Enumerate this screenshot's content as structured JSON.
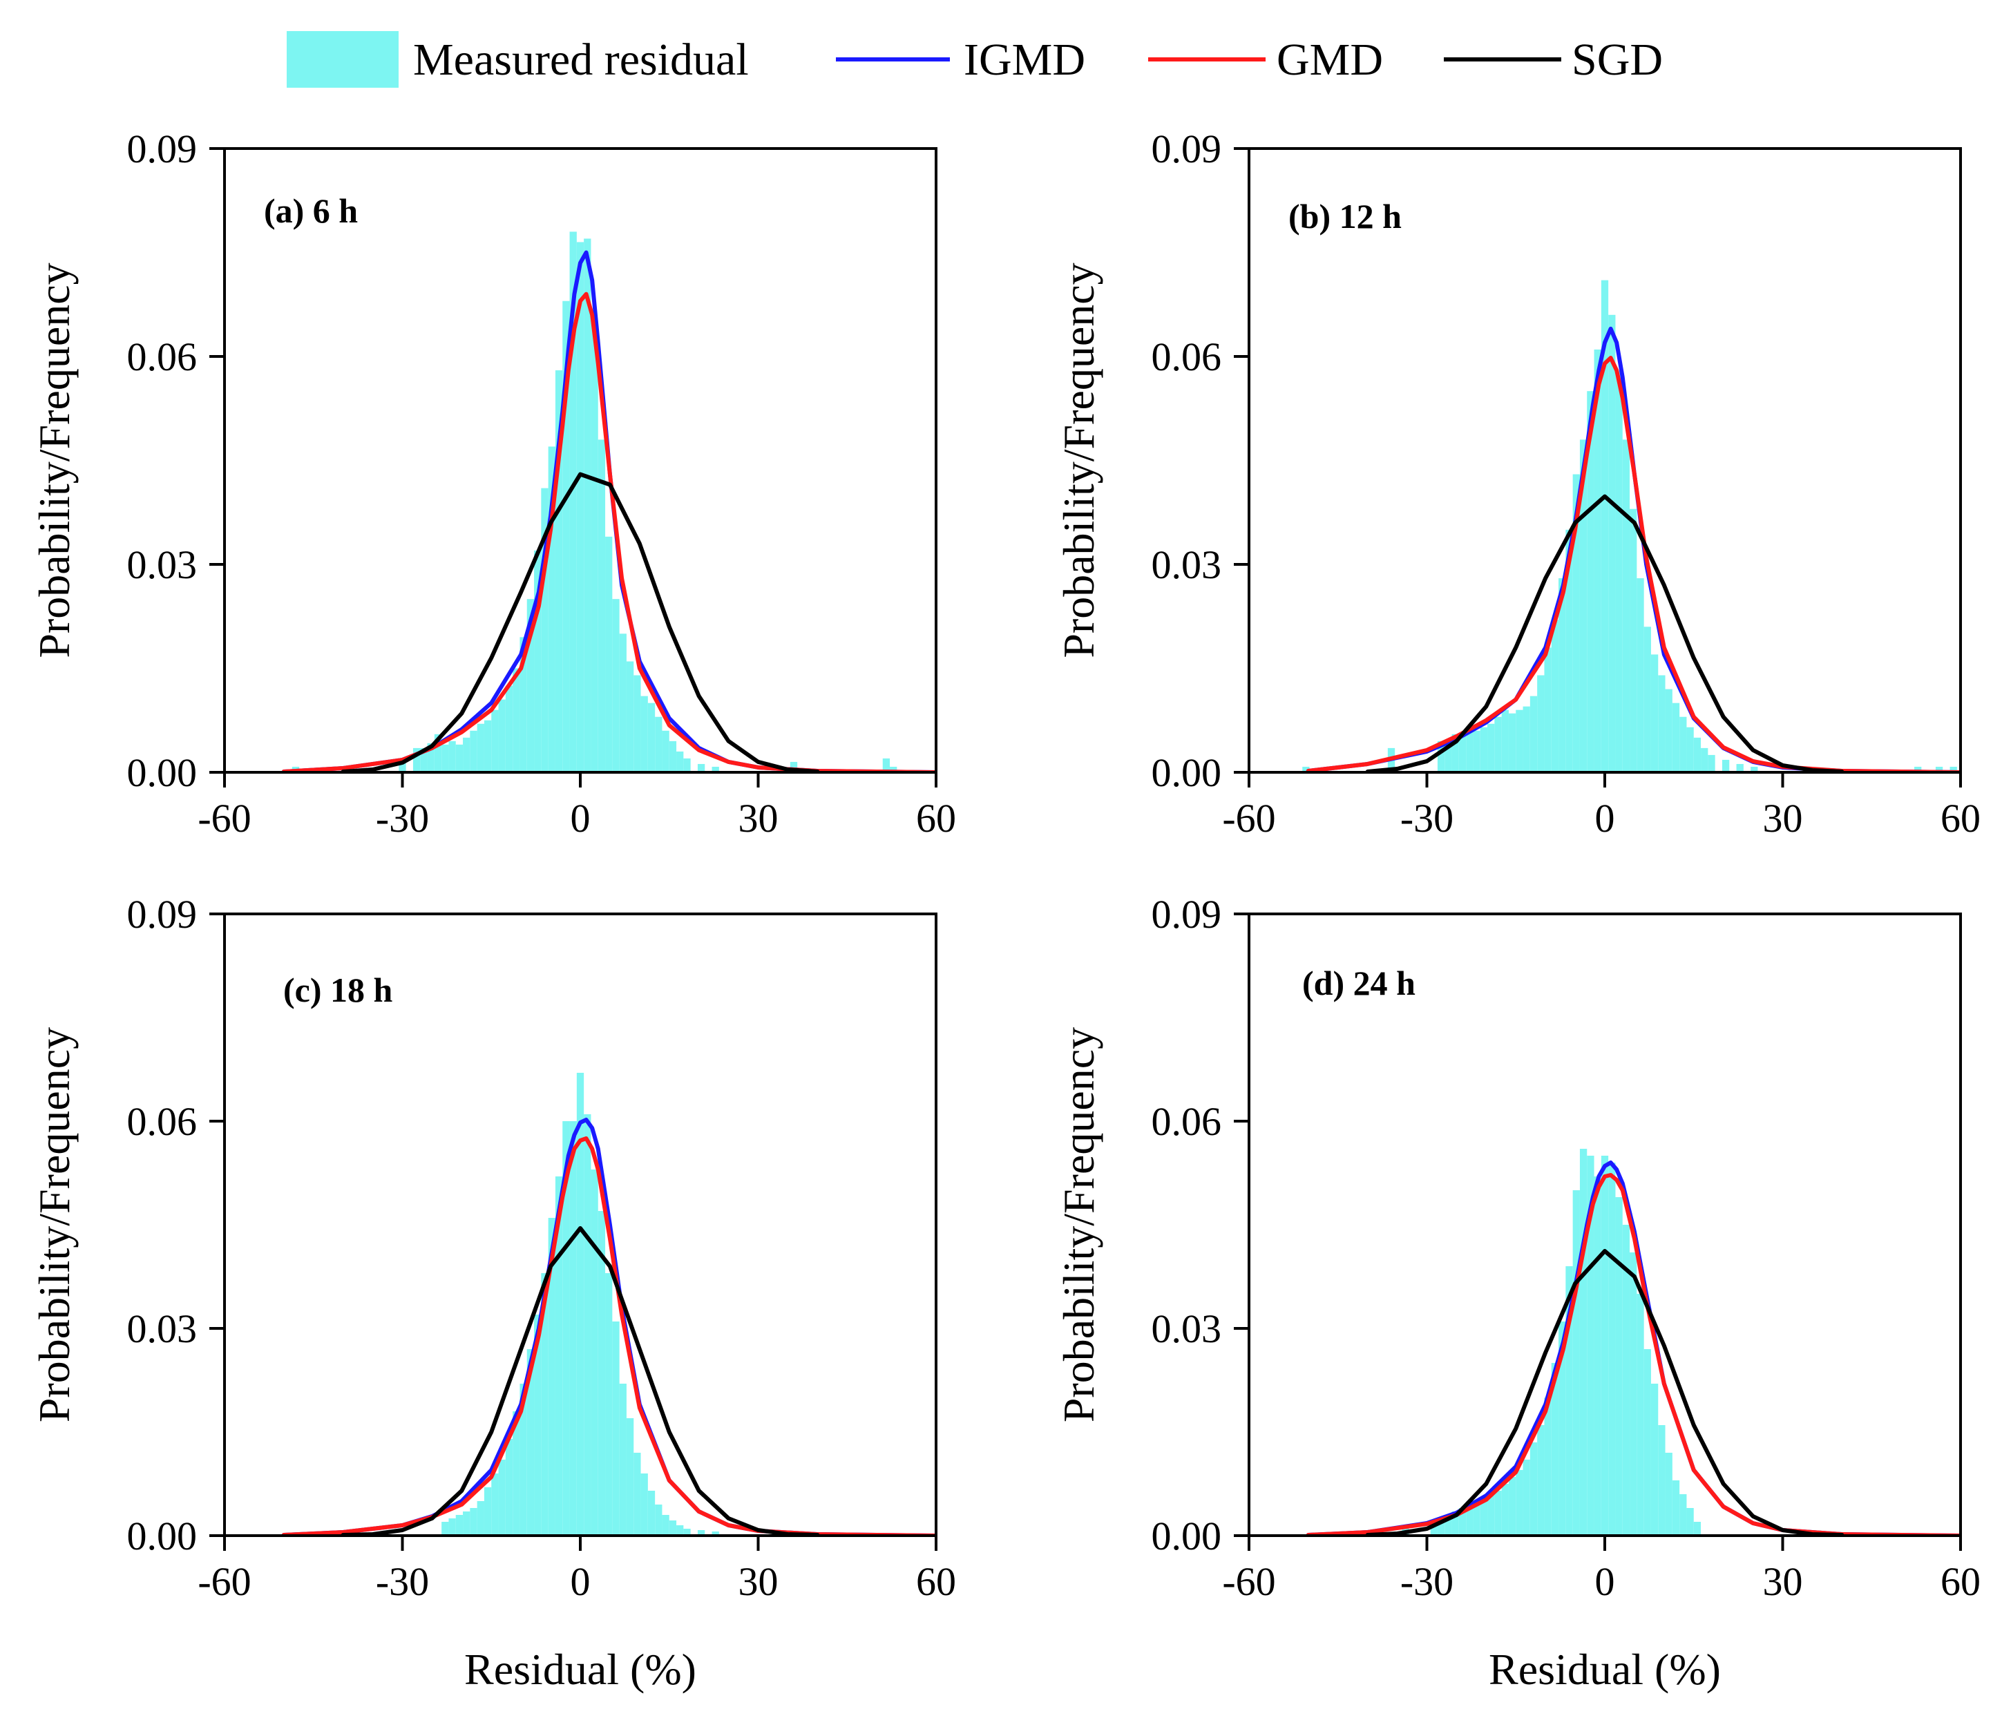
{
  "legend": [
    {
      "name": "Measured residual",
      "kind": "bar",
      "color": "#7df5f2"
    },
    {
      "name": "IGMD",
      "kind": "line",
      "color": "#1a1aff"
    },
    {
      "name": "GMD",
      "kind": "line",
      "color": "#ff1a1a"
    },
    {
      "name": "SGD",
      "kind": "line",
      "color": "#000000"
    }
  ],
  "chart_data": [
    {
      "type": "bar",
      "panel_label": "(a) 6 h",
      "xlabel": "",
      "ylabel": "Probability/Frequency",
      "xlim": [
        -60,
        60
      ],
      "ylim": [
        0,
        0.09
      ],
      "xticks": [
        "-60",
        "-30",
        "0",
        "30",
        "60"
      ],
      "yticks": [
        "0.00",
        "0.03",
        "0.06",
        "0.09"
      ],
      "histogram": {
        "name": "Measured residual",
        "bin_width": 1.2,
        "x": [
          -48,
          -30,
          -27.6,
          -26.4,
          -25.2,
          -24,
          -22.8,
          -21.6,
          -20.4,
          -19.2,
          -18,
          -16.8,
          -15.6,
          -14.4,
          -13.2,
          -12,
          -10.8,
          -9.6,
          -8.4,
          -7.2,
          -6,
          -4.8,
          -3.6,
          -2.4,
          -1.2,
          0,
          1.2,
          2.4,
          3.6,
          4.8,
          6,
          7.2,
          8.4,
          9.6,
          10.8,
          12,
          13.2,
          14.4,
          15.6,
          16.8,
          18,
          20.4,
          22.8,
          36,
          51.6,
          52.8
        ],
        "values": [
          0.0008,
          0.002,
          0.0035,
          0.0035,
          0.0042,
          0.0055,
          0.004,
          0.0045,
          0.004,
          0.005,
          0.006,
          0.007,
          0.0075,
          0.009,
          0.0105,
          0.0125,
          0.015,
          0.0195,
          0.025,
          0.032,
          0.041,
          0.047,
          0.058,
          0.068,
          0.078,
          0.0765,
          0.077,
          0.065,
          0.048,
          0.034,
          0.025,
          0.02,
          0.016,
          0.014,
          0.011,
          0.01,
          0.008,
          0.006,
          0.0045,
          0.003,
          0.002,
          0.0012,
          0.0008,
          0.0015,
          0.002,
          0.0008
        ]
      },
      "series": [
        {
          "name": "IGMD",
          "x": [
            -50,
            -40,
            -30,
            -25,
            -20,
            -15,
            -10,
            -7,
            -5,
            -3,
            -2,
            -1,
            0,
            1,
            2,
            3,
            5,
            7,
            10,
            15,
            20,
            25,
            30,
            40,
            50,
            60
          ],
          "values": [
            0.0001,
            0.0006,
            0.0018,
            0.0035,
            0.0062,
            0.01,
            0.017,
            0.026,
            0.037,
            0.052,
            0.061,
            0.069,
            0.0735,
            0.075,
            0.071,
            0.062,
            0.043,
            0.027,
            0.016,
            0.0078,
            0.0035,
            0.0015,
            0.0007,
            0.0002,
            0.0001,
            0
          ]
        },
        {
          "name": "GMD",
          "x": [
            -50,
            -40,
            -30,
            -25,
            -20,
            -15,
            -10,
            -7,
            -5,
            -3,
            -2,
            -1,
            0,
            1,
            2,
            3,
            5,
            7,
            10,
            15,
            20,
            25,
            30,
            40,
            50,
            60
          ],
          "values": [
            0.0001,
            0.0006,
            0.0018,
            0.0035,
            0.0058,
            0.009,
            0.015,
            0.024,
            0.035,
            0.05,
            0.058,
            0.064,
            0.068,
            0.069,
            0.066,
            0.059,
            0.043,
            0.028,
            0.015,
            0.0068,
            0.0032,
            0.0015,
            0.0007,
            0.0002,
            0.0001,
            0
          ]
        },
        {
          "name": "SGD",
          "x": [
            -40,
            -35,
            -30,
            -25,
            -20,
            -15,
            -10,
            -5,
            0,
            5,
            10,
            15,
            20,
            25,
            30,
            35,
            40
          ],
          "values": [
            0.0001,
            0.0004,
            0.0014,
            0.0038,
            0.0085,
            0.0165,
            0.026,
            0.036,
            0.043,
            0.0415,
            0.033,
            0.021,
            0.011,
            0.0045,
            0.0015,
            0.0004,
            0.0001
          ]
        }
      ]
    },
    {
      "type": "bar",
      "panel_label": "(b) 12 h",
      "xlabel": "",
      "ylabel": "Probability/Frequency",
      "xlim": [
        -60,
        60
      ],
      "ylim": [
        0,
        0.09
      ],
      "xticks": [
        "-60",
        "-30",
        "0",
        "30",
        "60"
      ],
      "yticks": [
        "0.00",
        "0.03",
        "0.06",
        "0.09"
      ],
      "histogram": {
        "name": "Measured residual",
        "bin_width": 1.2,
        "x": [
          -50.4,
          -36,
          -27.6,
          -26.4,
          -25.2,
          -24,
          -22.8,
          -21.6,
          -20.4,
          -19.2,
          -18,
          -16.8,
          -15.6,
          -14.4,
          -13.2,
          -12,
          -10.8,
          -9.6,
          -8.4,
          -7.2,
          -6,
          -4.8,
          -3.6,
          -2.4,
          -1.2,
          0,
          1.2,
          2.4,
          3.6,
          4.8,
          6,
          7.2,
          8.4,
          9.6,
          10.8,
          12,
          13.2,
          14.4,
          15.6,
          16.8,
          18,
          20.4,
          22.8,
          25.2,
          52.8,
          56.4,
          58.8
        ],
        "values": [
          0.0008,
          0.0035,
          0.0045,
          0.0045,
          0.0055,
          0.0055,
          0.006,
          0.006,
          0.0065,
          0.007,
          0.008,
          0.009,
          0.0085,
          0.009,
          0.0095,
          0.011,
          0.014,
          0.018,
          0.022,
          0.028,
          0.035,
          0.043,
          0.048,
          0.055,
          0.061,
          0.071,
          0.066,
          0.058,
          0.048,
          0.038,
          0.028,
          0.021,
          0.017,
          0.014,
          0.012,
          0.01,
          0.008,
          0.0065,
          0.005,
          0.0035,
          0.0025,
          0.0018,
          0.0012,
          0.0008,
          0.0008,
          0.0008,
          0.0008
        ]
      },
      "series": [
        {
          "name": "IGMD",
          "x": [
            -50,
            -40,
            -30,
            -25,
            -20,
            -15,
            -10,
            -7,
            -5,
            -3,
            -2,
            -1,
            0,
            1,
            2,
            3,
            5,
            7,
            10,
            15,
            20,
            25,
            30,
            40,
            50,
            60
          ],
          "values": [
            0.0002,
            0.0012,
            0.003,
            0.0048,
            0.0072,
            0.0105,
            0.018,
            0.027,
            0.036,
            0.047,
            0.053,
            0.058,
            0.062,
            0.064,
            0.062,
            0.057,
            0.043,
            0.03,
            0.017,
            0.0078,
            0.0035,
            0.0015,
            0.0007,
            0.0002,
            0.0001,
            0
          ]
        },
        {
          "name": "GMD",
          "x": [
            -50,
            -40,
            -30,
            -25,
            -20,
            -15,
            -10,
            -7,
            -5,
            -3,
            -2,
            -1,
            0,
            1,
            2,
            3,
            5,
            7,
            10,
            15,
            20,
            25,
            30,
            40,
            50,
            60
          ],
          "values": [
            0.0002,
            0.0012,
            0.0032,
            0.0052,
            0.0075,
            0.0105,
            0.017,
            0.026,
            0.035,
            0.046,
            0.051,
            0.056,
            0.059,
            0.0598,
            0.058,
            0.054,
            0.043,
            0.031,
            0.018,
            0.008,
            0.0036,
            0.0016,
            0.0008,
            0.0002,
            0.0001,
            0
          ]
        },
        {
          "name": "SGD",
          "x": [
            -40,
            -35,
            -30,
            -25,
            -20,
            -15,
            -10,
            -5,
            0,
            5,
            10,
            15,
            20,
            25,
            30,
            35,
            40
          ],
          "values": [
            0.0001,
            0.0005,
            0.0016,
            0.0045,
            0.0095,
            0.018,
            0.028,
            0.036,
            0.0398,
            0.036,
            0.027,
            0.0165,
            0.008,
            0.0032,
            0.001,
            0.0003,
            0.0001
          ]
        }
      ]
    },
    {
      "type": "bar",
      "panel_label": "(c) 18 h",
      "xlabel": "Residual (%)",
      "ylabel": "Probability/Frequency",
      "xlim": [
        -60,
        60
      ],
      "ylim": [
        0,
        0.09
      ],
      "xticks": [
        "-60",
        "-30",
        "0",
        "30",
        "60"
      ],
      "yticks": [
        "0.00",
        "0.03",
        "0.06",
        "0.09"
      ],
      "histogram": {
        "name": "Measured residual",
        "bin_width": 1.2,
        "x": [
          -22.8,
          -21.6,
          -20.4,
          -19.2,
          -18,
          -16.8,
          -15.6,
          -14.4,
          -13.2,
          -12,
          -10.8,
          -9.6,
          -8.4,
          -7.2,
          -6,
          -4.8,
          -3.6,
          -2.4,
          -1.2,
          0,
          1.2,
          2.4,
          3.6,
          4.8,
          6,
          7.2,
          8.4,
          9.6,
          10.8,
          12,
          13.2,
          14.4,
          15.6,
          16.8,
          18,
          20.4,
          22.8
        ],
        "values": [
          0.002,
          0.0025,
          0.003,
          0.0035,
          0.004,
          0.005,
          0.007,
          0.009,
          0.011,
          0.014,
          0.018,
          0.022,
          0.027,
          0.032,
          0.038,
          0.046,
          0.052,
          0.06,
          0.06,
          0.067,
          0.061,
          0.053,
          0.047,
          0.038,
          0.031,
          0.022,
          0.017,
          0.012,
          0.009,
          0.0065,
          0.0045,
          0.003,
          0.0022,
          0.0015,
          0.001,
          0.0008,
          0.0006
        ]
      },
      "series": [
        {
          "name": "IGMD",
          "x": [
            -50,
            -40,
            -30,
            -25,
            -20,
            -15,
            -10,
            -7,
            -5,
            -3,
            -2,
            -1,
            0,
            1,
            2,
            3,
            5,
            7,
            10,
            15,
            20,
            25,
            30,
            40,
            50,
            60
          ],
          "values": [
            0.0001,
            0.0005,
            0.0015,
            0.0028,
            0.005,
            0.0095,
            0.019,
            0.03,
            0.04,
            0.05,
            0.055,
            0.058,
            0.0598,
            0.0602,
            0.059,
            0.056,
            0.045,
            0.033,
            0.019,
            0.008,
            0.0035,
            0.0015,
            0.0007,
            0.0002,
            0.0001,
            0
          ]
        },
        {
          "name": "GMD",
          "x": [
            -50,
            -40,
            -30,
            -25,
            -20,
            -15,
            -10,
            -7,
            -5,
            -3,
            -2,
            -1,
            0,
            1,
            2,
            3,
            5,
            7,
            10,
            15,
            20,
            25,
            30,
            40,
            50,
            60
          ],
          "values": [
            0.0001,
            0.0005,
            0.0015,
            0.0027,
            0.0045,
            0.0085,
            0.018,
            0.029,
            0.039,
            0.049,
            0.053,
            0.056,
            0.0572,
            0.0575,
            0.056,
            0.053,
            0.043,
            0.032,
            0.0185,
            0.008,
            0.0035,
            0.0015,
            0.0007,
            0.0002,
            0.0001,
            0
          ]
        },
        {
          "name": "SGD",
          "x": [
            -40,
            -35,
            -30,
            -25,
            -20,
            -15,
            -10,
            -5,
            0,
            5,
            10,
            15,
            20,
            25,
            30,
            35,
            40
          ],
          "values": [
            0.0001,
            0.0002,
            0.0008,
            0.0025,
            0.0065,
            0.015,
            0.027,
            0.039,
            0.0445,
            0.039,
            0.027,
            0.015,
            0.0065,
            0.0025,
            0.0008,
            0.0002,
            0.0001
          ]
        }
      ]
    },
    {
      "type": "bar",
      "panel_label": "(d) 24 h",
      "xlabel": "Residual (%)",
      "ylabel": "Probability/Frequency",
      "xlim": [
        -60,
        60
      ],
      "ylim": [
        0,
        0.09
      ],
      "xticks": [
        "-60",
        "-30",
        "0",
        "30",
        "60"
      ],
      "yticks": [
        "0.00",
        "0.03",
        "0.06",
        "0.09"
      ],
      "histogram": {
        "name": "Measured residual",
        "bin_width": 1.2,
        "x": [
          -33.6,
          -28.8,
          -27.6,
          -26.4,
          -25.2,
          -24,
          -22.8,
          -21.6,
          -20.4,
          -19.2,
          -18,
          -16.8,
          -15.6,
          -14.4,
          -13.2,
          -12,
          -10.8,
          -9.6,
          -8.4,
          -7.2,
          -6,
          -4.8,
          -3.6,
          -2.4,
          -1.2,
          0,
          1.2,
          2.4,
          3.6,
          4.8,
          6,
          7.2,
          8.4,
          9.6,
          10.8,
          12,
          13.2,
          14.4,
          15.6
        ],
        "values": [
          0.0015,
          0.002,
          0.0025,
          0.003,
          0.0035,
          0.004,
          0.0045,
          0.005,
          0.0055,
          0.006,
          0.0065,
          0.0075,
          0.0085,
          0.0095,
          0.011,
          0.0135,
          0.016,
          0.02,
          0.025,
          0.031,
          0.039,
          0.05,
          0.056,
          0.055,
          0.052,
          0.055,
          0.054,
          0.049,
          0.045,
          0.041,
          0.035,
          0.027,
          0.022,
          0.016,
          0.012,
          0.008,
          0.006,
          0.004,
          0.002
        ]
      },
      "series": [
        {
          "name": "IGMD",
          "x": [
            -50,
            -40,
            -30,
            -25,
            -20,
            -15,
            -10,
            -7,
            -5,
            -3,
            -2,
            -1,
            0,
            1,
            2,
            3,
            5,
            7,
            10,
            15,
            20,
            25,
            30,
            40,
            50,
            60
          ],
          "values": [
            0.0001,
            0.0005,
            0.0018,
            0.0033,
            0.0058,
            0.01,
            0.019,
            0.028,
            0.036,
            0.045,
            0.049,
            0.052,
            0.0535,
            0.054,
            0.053,
            0.051,
            0.044,
            0.035,
            0.022,
            0.0095,
            0.0042,
            0.0018,
            0.0008,
            0.0002,
            0.0001,
            0
          ]
        },
        {
          "name": "GMD",
          "x": [
            -50,
            -40,
            -30,
            -25,
            -20,
            -15,
            -10,
            -7,
            -5,
            -3,
            -2,
            -1,
            0,
            1,
            2,
            3,
            5,
            7,
            10,
            15,
            20,
            25,
            30,
            40,
            50,
            60
          ],
          "values": [
            0.0001,
            0.0005,
            0.0017,
            0.003,
            0.0052,
            0.0092,
            0.018,
            0.027,
            0.035,
            0.044,
            0.048,
            0.0505,
            0.052,
            0.0522,
            0.0515,
            0.05,
            0.043,
            0.034,
            0.022,
            0.0095,
            0.0042,
            0.0018,
            0.0008,
            0.0002,
            0.0001,
            0
          ]
        },
        {
          "name": "SGD",
          "x": [
            -40,
            -35,
            -30,
            -25,
            -20,
            -15,
            -10,
            -5,
            0,
            5,
            10,
            15,
            20,
            25,
            30,
            35,
            40
          ],
          "values": [
            0.0001,
            0.0003,
            0.001,
            0.003,
            0.0075,
            0.0155,
            0.0265,
            0.0365,
            0.0412,
            0.0375,
            0.0275,
            0.016,
            0.0075,
            0.0028,
            0.0008,
            0.0002,
            0.0001
          ]
        }
      ]
    }
  ]
}
